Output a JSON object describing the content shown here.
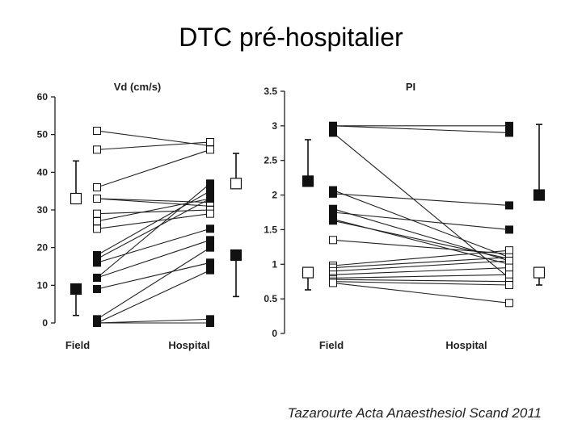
{
  "slide": {
    "title": "DTC pré-hospitalier",
    "citation": "Tazarourte Acta Anaesthesiol Scand 2011"
  },
  "chart_data": [
    {
      "type": "line",
      "title": "Vd (cm/s)",
      "categories": [
        "Field",
        "Hospital"
      ],
      "ylim": [
        0,
        60
      ],
      "yticks": [
        0,
        10,
        20,
        30,
        40,
        50,
        60
      ],
      "xlabel": "",
      "ylabel": "",
      "series": [
        {
          "group": "open",
          "values": [
            51,
            47
          ]
        },
        {
          "group": "open",
          "values": [
            46,
            48
          ]
        },
        {
          "group": "open",
          "values": [
            36,
            46
          ]
        },
        {
          "group": "open",
          "values": [
            33,
            31
          ]
        },
        {
          "group": "open",
          "values": [
            33,
            32
          ]
        },
        {
          "group": "open",
          "values": [
            29,
            30
          ]
        },
        {
          "group": "open",
          "values": [
            27,
            33
          ]
        },
        {
          "group": "open",
          "values": [
            25,
            29
          ]
        },
        {
          "group": "filled",
          "values": [
            18,
            35
          ]
        },
        {
          "group": "filled",
          "values": [
            17,
            33
          ]
        },
        {
          "group": "filled",
          "values": [
            16,
            25
          ]
        },
        {
          "group": "filled",
          "values": [
            12,
            37
          ]
        },
        {
          "group": "filled",
          "values": [
            12,
            22
          ]
        },
        {
          "group": "filled",
          "values": [
            9,
            16
          ]
        },
        {
          "group": "filled",
          "values": [
            1,
            20
          ]
        },
        {
          "group": "filled",
          "values": [
            0,
            14
          ]
        },
        {
          "group": "filled",
          "values": [
            0,
            1
          ]
        },
        {
          "group": "filled",
          "values": [
            0,
            0
          ]
        }
      ],
      "summary": [
        {
          "group": "open",
          "side": "field",
          "mean": 33,
          "error_up": 43
        },
        {
          "group": "filled",
          "side": "field",
          "mean": 9,
          "error_down": 2
        },
        {
          "group": "open",
          "side": "hospital",
          "mean": 37,
          "error_up": 45
        },
        {
          "group": "filled",
          "side": "hospital",
          "mean": 18,
          "error_down": 7
        }
      ]
    },
    {
      "type": "line",
      "title": "PI",
      "categories": [
        "Field",
        "Hospital"
      ],
      "ylim": [
        0,
        3.5
      ],
      "yticks": [
        0,
        0.5,
        1,
        1.5,
        2,
        2.5,
        3,
        3.5
      ],
      "xlabel": "",
      "ylabel": "",
      "series": [
        {
          "group": "filled",
          "values": [
            3.0,
            3.0
          ]
        },
        {
          "group": "filled",
          "values": [
            3.0,
            2.9
          ]
        },
        {
          "group": "filled",
          "values": [
            2.9,
            0.8
          ]
        },
        {
          "group": "filled",
          "values": [
            2.07,
            1.1
          ]
        },
        {
          "group": "filled",
          "values": [
            2.02,
            1.85
          ]
        },
        {
          "group": "filled",
          "values": [
            1.8,
            1.05
          ]
        },
        {
          "group": "filled",
          "values": [
            1.75,
            1.5
          ]
        },
        {
          "group": "filled",
          "values": [
            1.65,
            1.0
          ]
        },
        {
          "group": "filled",
          "values": [
            1.63,
            1.08
          ]
        },
        {
          "group": "open",
          "values": [
            1.35,
            1.15
          ]
        },
        {
          "group": "open",
          "values": [
            0.98,
            1.2
          ]
        },
        {
          "group": "open",
          "values": [
            0.95,
            1.1
          ]
        },
        {
          "group": "open",
          "values": [
            0.9,
            1.05
          ]
        },
        {
          "group": "open",
          "values": [
            0.85,
            0.95
          ]
        },
        {
          "group": "open",
          "values": [
            0.8,
            0.85
          ]
        },
        {
          "group": "open",
          "values": [
            0.78,
            0.75
          ]
        },
        {
          "group": "open",
          "values": [
            0.75,
            0.7
          ]
        },
        {
          "group": "open",
          "values": [
            0.73,
            0.44
          ]
        }
      ],
      "summary": [
        {
          "group": "filled",
          "side": "field",
          "mean": 2.2,
          "error_up": 2.8
        },
        {
          "group": "open",
          "side": "field",
          "mean": 0.88,
          "error_down": 0.63
        },
        {
          "group": "filled",
          "side": "hospital",
          "mean": 2.0,
          "error_up": 3.02
        },
        {
          "group": "open",
          "side": "hospital",
          "mean": 0.88,
          "error_down": 0.7
        }
      ]
    }
  ],
  "colors": {
    "ink": "#111111",
    "line": "#222222",
    "open_fill": "#ffffff",
    "filled_fill": "#111111"
  }
}
